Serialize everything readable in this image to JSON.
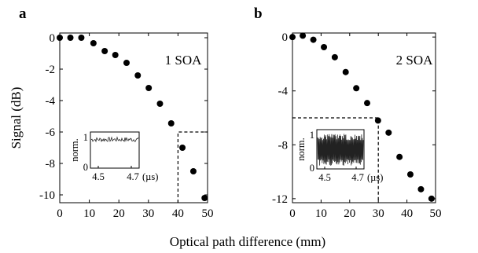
{
  "xlabel": "Optical path difference (mm)",
  "chart_data": [
    {
      "type": "scatter",
      "panel_label": "a",
      "annotation": "1 SOA",
      "ylabel": "Signal (dB)",
      "xlim": [
        0,
        50
      ],
      "ylim": [
        -10.5,
        0.3
      ],
      "xticks": [
        0,
        10,
        20,
        30,
        40,
        50
      ],
      "yticks": [
        0,
        -2,
        -4,
        -6,
        -8,
        -10
      ],
      "x": [
        0,
        3.6,
        7.3,
        11.4,
        15.2,
        18.8,
        22.6,
        26.4,
        30.1,
        33.9,
        37.7,
        41.5,
        45.2,
        49
      ],
      "y": [
        0,
        0,
        0,
        -0.35,
        -0.85,
        -1.1,
        -1.6,
        -2.4,
        -3.2,
        -4.2,
        -5.45,
        -7.0,
        -8.5,
        -10.2
      ],
      "cutoff": {
        "x": 40,
        "y": -6
      },
      "inset": {
        "ylabel": "norm.",
        "yticks": [
          "1",
          "0"
        ],
        "xticks": [
          "4.5",
          "4.7"
        ],
        "xunit": "(µs)",
        "level": 0.84,
        "ripple": 0.07
      }
    },
    {
      "type": "scatter",
      "panel_label": "b",
      "annotation": "2 SOA",
      "ylim": [
        -12.3,
        0.3
      ],
      "xlim": [
        0,
        50
      ],
      "xticks": [
        0,
        10,
        20,
        30,
        40,
        50
      ],
      "yticks": [
        0,
        -4,
        -8,
        -12
      ],
      "x": [
        0,
        3.6,
        7.3,
        11,
        14.8,
        18.6,
        22.3,
        26.1,
        29.9,
        33.6,
        37.4,
        41.2,
        44.9,
        48.6
      ],
      "y": [
        0,
        0.1,
        -0.2,
        -0.75,
        -1.5,
        -2.6,
        -3.8,
        -4.9,
        -6.2,
        -7.1,
        -8.9,
        -10.2,
        -11.3,
        -12.0
      ],
      "cutoff": {
        "x": 30,
        "y": -6
      },
      "inset": {
        "ylabel": "norm.",
        "yticks": [
          "1",
          "0"
        ],
        "xticks": [
          "4.5",
          "4.7"
        ],
        "xunit": "(µs)",
        "level": 0.5,
        "ripple": 0.45
      }
    }
  ]
}
